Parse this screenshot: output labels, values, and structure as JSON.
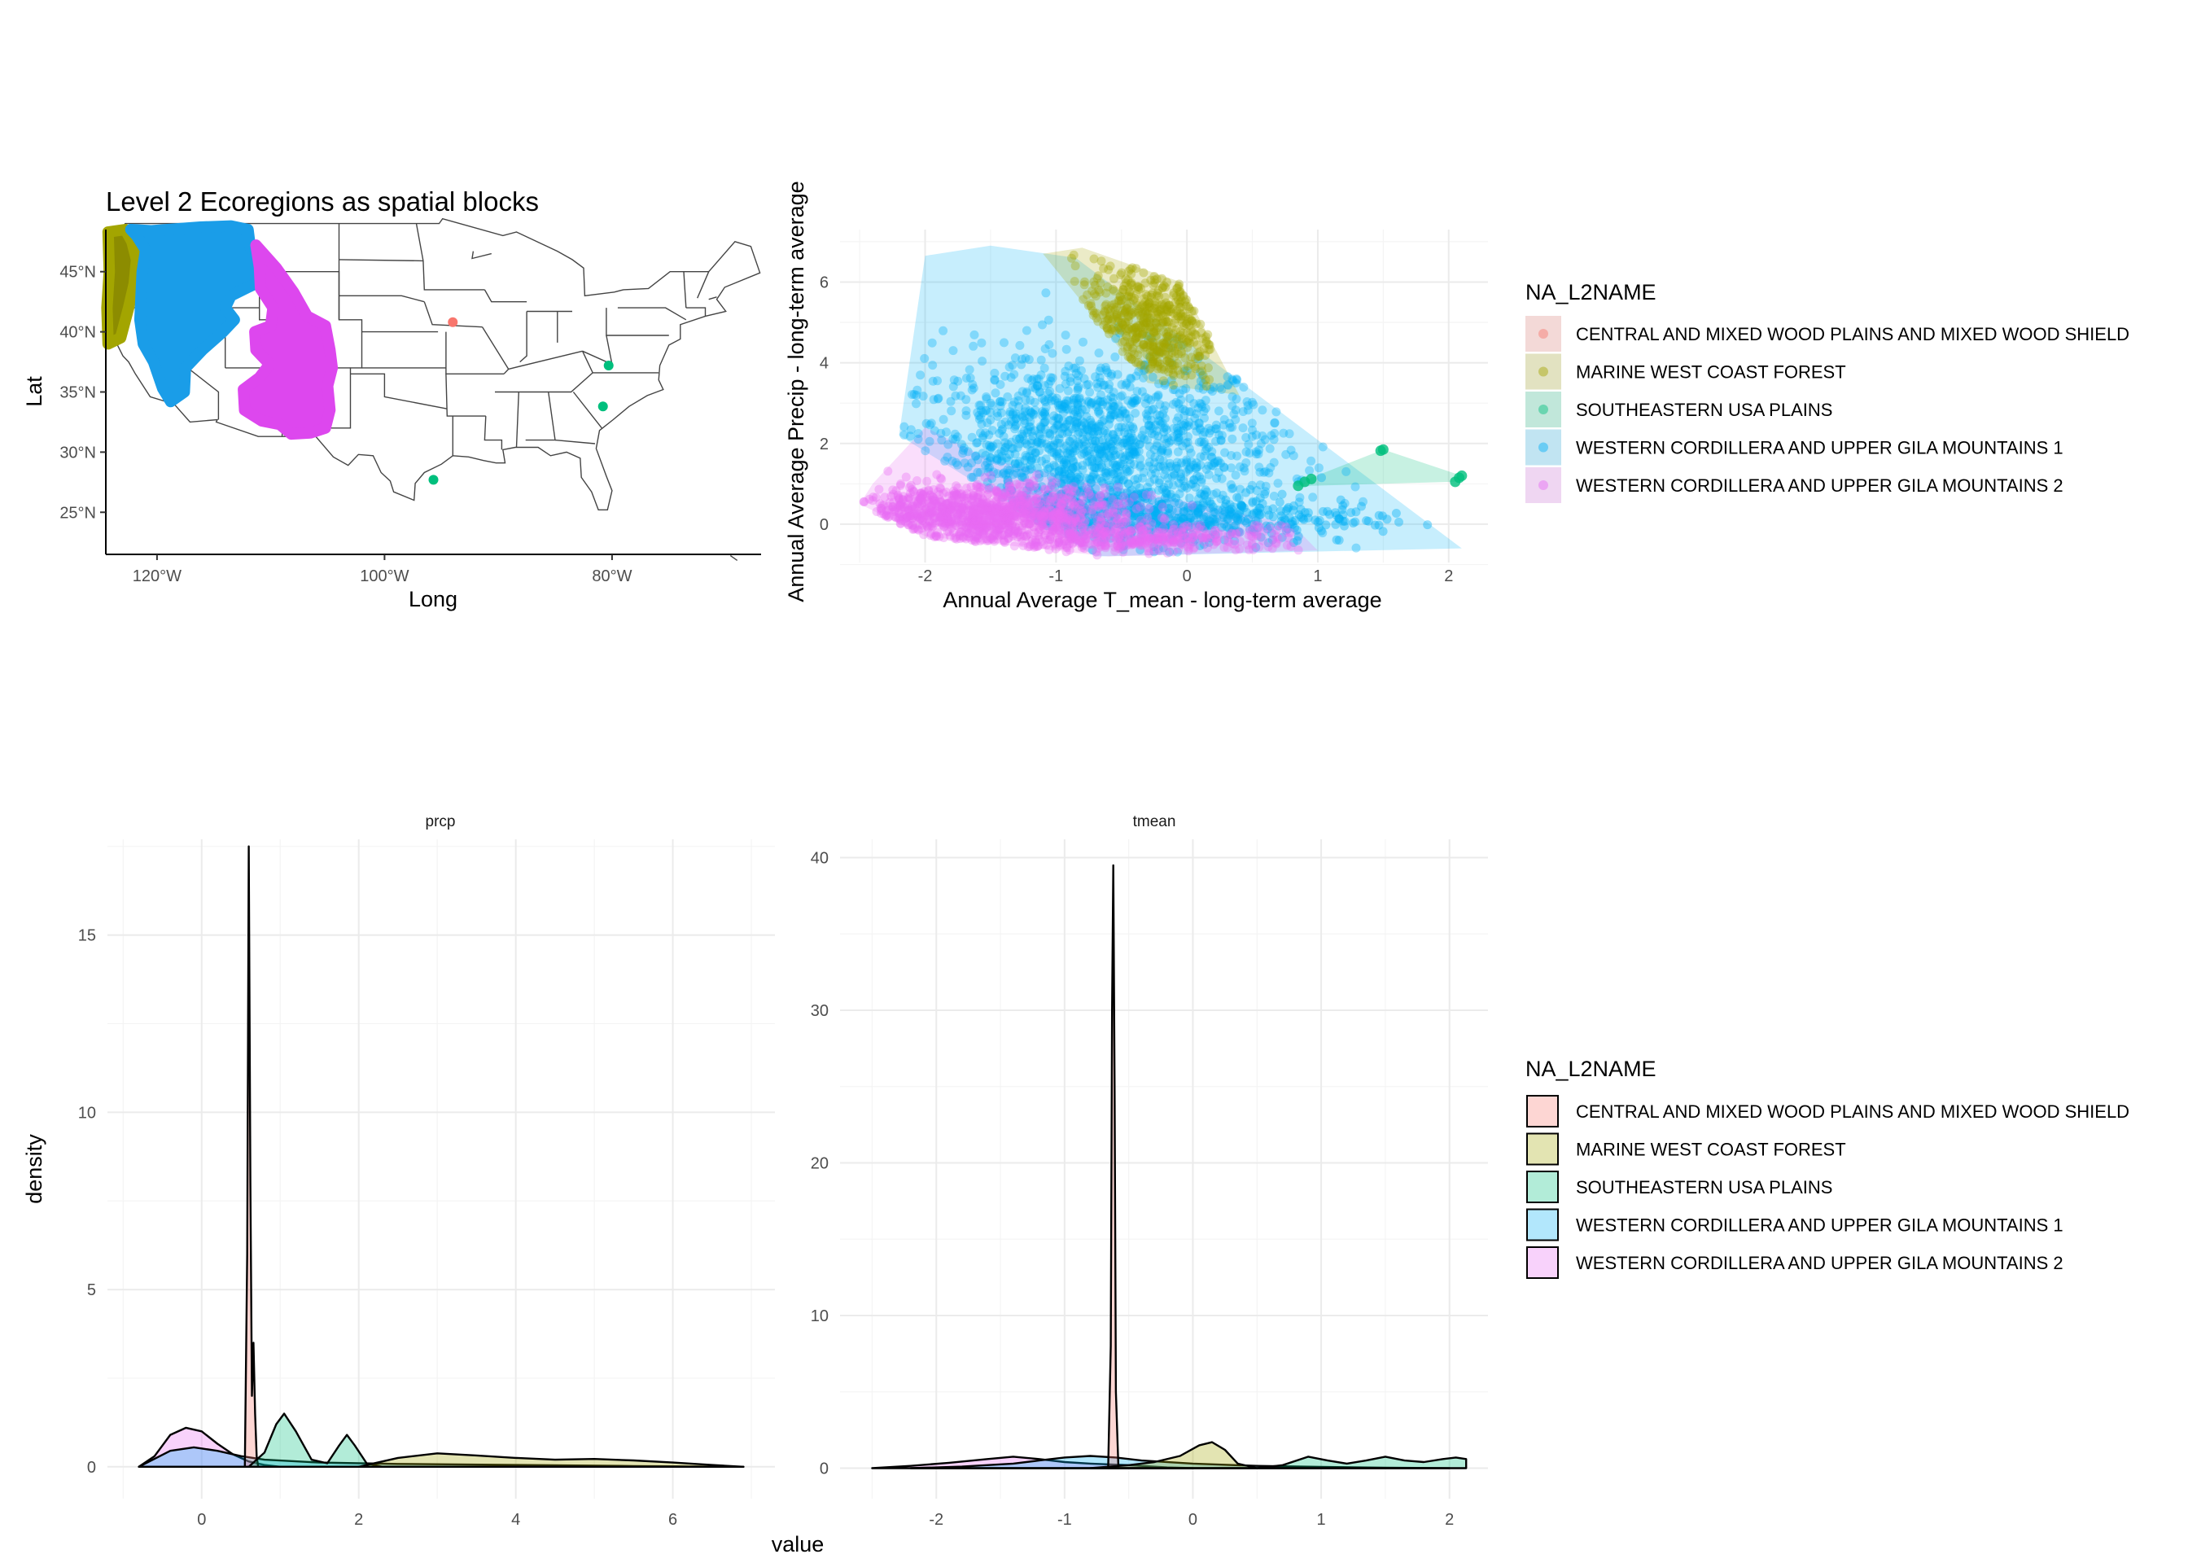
{
  "colors": {
    "central": "#F8766D",
    "marine": "#A3A500",
    "southeastern": "#00BF7D",
    "western1": "#00B0F6",
    "western2": "#E76BF3",
    "marine_dark": "#8c8c00",
    "southeastern_dark": "#1fb06b",
    "western1_dark": "#1a9de8",
    "western2_dark": "#dd47ee"
  },
  "legend_top": {
    "title": "NA_L2NAME",
    "items": [
      {
        "label": "CENTRAL AND MIXED WOOD PLAINS AND MIXED WOOD SHIELD",
        "color": "#F8766D"
      },
      {
        "label": "MARINE WEST COAST FOREST",
        "color": "#A3A500"
      },
      {
        "label": "SOUTHEASTERN USA PLAINS",
        "color": "#00BF7D"
      },
      {
        "label": "WESTERN CORDILLERA AND UPPER GILA MOUNTAINS 1",
        "color": "#00B0F6"
      },
      {
        "label": "WESTERN CORDILLERA AND UPPER GILA MOUNTAINS 2",
        "color": "#E76BF3"
      }
    ]
  },
  "legend_bottom": {
    "title": "NA_L2NAME",
    "items": [
      {
        "label": "CENTRAL AND MIXED WOOD PLAINS AND MIXED WOOD SHIELD",
        "color": "#F8766D"
      },
      {
        "label": "MARINE WEST COAST FOREST",
        "color": "#A3A500"
      },
      {
        "label": "SOUTHEASTERN USA PLAINS",
        "color": "#00BF7D"
      },
      {
        "label": "WESTERN CORDILLERA AND UPPER GILA MOUNTAINS 1",
        "color": "#00B0F6"
      },
      {
        "label": "WESTERN CORDILLERA AND UPPER GILA MOUNTAINS 2",
        "color": "#E76BF3"
      }
    ]
  },
  "chart_data": [
    {
      "type": "scatter",
      "subtype": "map",
      "title": "Level 2 Ecoregions as spatial blocks",
      "xlabel": "Long",
      "ylabel": "Lat",
      "xlim": [
        -124.5,
        -66.9
      ],
      "ylim": [
        21.5,
        48.5
      ],
      "x_ticks": [
        -120,
        -100,
        -80
      ],
      "x_tick_labels": [
        "120°W",
        "100°W",
        "80°W"
      ],
      "y_ticks": [
        25,
        30,
        35,
        40,
        45
      ],
      "y_tick_labels": [
        "25°N",
        "30°N",
        "35°N",
        "40°N",
        "45°N"
      ],
      "grid": false,
      "series": [
        {
          "key": "central",
          "points": [
            [
              -94.0,
              40.8
            ]
          ]
        },
        {
          "key": "southeastern",
          "points": [
            [
              -80.3,
              37.2
            ],
            [
              -80.8,
              33.8
            ],
            [
              -95.7,
              27.7
            ]
          ]
        },
        {
          "key": "marine",
          "region": "Pacific Northwest coast, 39-47°N, 124-122°W"
        },
        {
          "key": "western1",
          "region": "Cascades, Sierra Nevada, Northern Rockies, 34-47°N"
        },
        {
          "key": "western2",
          "region": "Southern Rockies, Colorado Plateau, Arizona-New Mexico mountains, 29-46°N"
        }
      ]
    },
    {
      "type": "scatter",
      "xlabel": "Annual Average T_mean - long-term average",
      "ylabel": "Annual Average Precip - long-term average",
      "xlim": [
        -2.65,
        2.3
      ],
      "ylim": [
        -0.95,
        7.3
      ],
      "x_ticks": [
        -2,
        -1,
        0,
        1,
        2
      ],
      "y_ticks": [
        0,
        2,
        4,
        6
      ],
      "grid": true,
      "hulls": {
        "western1": [
          [
            -2.0,
            6.65
          ],
          [
            -1.5,
            6.9
          ],
          [
            -0.85,
            6.6
          ],
          [
            2.1,
            -0.6
          ],
          [
            -0.7,
            -0.8
          ],
          [
            -2.2,
            2.2
          ]
        ],
        "marine": [
          [
            -1.1,
            6.7
          ],
          [
            -0.8,
            6.85
          ],
          [
            -0.05,
            6.0
          ],
          [
            0.4,
            3.2
          ],
          [
            -0.3,
            3.5
          ]
        ],
        "southeastern": [
          [
            0.85,
            0.9
          ],
          [
            0.95,
            1.15
          ],
          [
            1.5,
            1.85
          ],
          [
            2.1,
            1.2
          ],
          [
            2.05,
            1.05
          ],
          [
            0.95,
            0.95
          ]
        ],
        "western2": [
          [
            -2.5,
            0.5
          ],
          [
            -2.4,
            1.0
          ],
          [
            -2.0,
            2.4
          ],
          [
            -1.5,
            1.6
          ],
          [
            0.8,
            0.0
          ],
          [
            1.0,
            -0.65
          ],
          [
            -0.6,
            -0.8
          ],
          [
            -2.0,
            -0.3
          ]
        ]
      },
      "clusters": {
        "western1": {
          "x_range": [
            -2.2,
            2.1
          ],
          "y_range": [
            -0.8,
            6.9
          ],
          "center": [
            -0.8,
            1.8
          ]
        },
        "marine": {
          "x_range": [
            -1.1,
            0.4
          ],
          "y_range": [
            3.0,
            6.85
          ],
          "center": [
            -0.3,
            4.8
          ]
        },
        "western2": {
          "x_range": [
            -2.5,
            1.0
          ],
          "y_range": [
            -0.8,
            2.4
          ],
          "center": [
            -1.6,
            0.4
          ]
        },
        "southeastern": {
          "points": [
            [
              0.85,
              0.95
            ],
            [
              0.9,
              1.05
            ],
            [
              0.95,
              1.12
            ],
            [
              1.48,
              1.82
            ],
            [
              1.5,
              1.85
            ],
            [
              2.05,
              1.05
            ],
            [
              2.08,
              1.15
            ],
            [
              2.1,
              1.2
            ]
          ]
        }
      }
    },
    {
      "type": "area",
      "subtype": "density",
      "facet": "prcp",
      "xlabel": "value",
      "ylabel": "density",
      "xlim": [
        -1.2,
        7.3
      ],
      "ylim": [
        -0.9,
        17.7
      ],
      "x_ticks": [
        0,
        2,
        4,
        6
      ],
      "y_ticks": [
        0,
        5,
        10,
        15
      ],
      "grid": true,
      "series": [
        {
          "key": "western2",
          "x": [
            -0.8,
            -0.6,
            -0.4,
            -0.2,
            0.0,
            0.2,
            0.4,
            0.6,
            0.8,
            1.0,
            1.2
          ],
          "y": [
            0.0,
            0.3,
            0.9,
            1.1,
            1.0,
            0.65,
            0.35,
            0.15,
            0.05,
            0.0,
            0.0
          ]
        },
        {
          "key": "western1",
          "x": [
            -0.8,
            -0.4,
            -0.1,
            0.2,
            0.5,
            0.8,
            1.5,
            2.5,
            4.0,
            5.5,
            6.9
          ],
          "y": [
            0.0,
            0.45,
            0.55,
            0.45,
            0.3,
            0.2,
            0.12,
            0.08,
            0.05,
            0.02,
            0.0
          ]
        },
        {
          "key": "central",
          "x": [
            0.55,
            0.58,
            0.6,
            0.62,
            0.64,
            0.66,
            0.68,
            0.7,
            0.72,
            0.75
          ],
          "y": [
            0.0,
            6.0,
            17.5,
            8.0,
            2.0,
            3.5,
            1.5,
            0.3,
            0.0,
            0.0
          ]
        },
        {
          "key": "southeastern",
          "x": [
            0.6,
            0.8,
            0.95,
            1.05,
            1.2,
            1.4,
            1.6,
            1.75,
            1.85,
            1.95,
            2.1,
            2.3
          ],
          "y": [
            0.0,
            0.4,
            1.2,
            1.5,
            1.0,
            0.2,
            0.1,
            0.6,
            0.9,
            0.6,
            0.1,
            0.0
          ]
        },
        {
          "key": "marine",
          "x": [
            2.0,
            2.5,
            3.0,
            3.5,
            4.0,
            4.5,
            5.0,
            5.5,
            6.0,
            6.5,
            6.9
          ],
          "y": [
            0.0,
            0.25,
            0.38,
            0.32,
            0.25,
            0.2,
            0.22,
            0.18,
            0.12,
            0.05,
            0.0
          ]
        }
      ]
    },
    {
      "type": "area",
      "subtype": "density",
      "facet": "tmean",
      "xlabel": "value",
      "ylabel": "density",
      "xlim": [
        -2.75,
        2.3
      ],
      "ylim": [
        -2.0,
        41.2
      ],
      "x_ticks": [
        -2,
        -1,
        0,
        1,
        2
      ],
      "y_ticks": [
        0,
        10,
        20,
        30,
        40
      ],
      "grid": true,
      "series": [
        {
          "key": "western2",
          "x": [
            -2.5,
            -2.2,
            -1.9,
            -1.6,
            -1.4,
            -1.2,
            -1.0,
            -0.8,
            -0.5,
            -0.2,
            0.0
          ],
          "y": [
            0.0,
            0.15,
            0.35,
            0.6,
            0.75,
            0.6,
            0.4,
            0.3,
            0.2,
            0.05,
            0.0
          ]
        },
        {
          "key": "western1",
          "x": [
            -2.2,
            -1.8,
            -1.4,
            -1.2,
            -1.0,
            -0.8,
            -0.6,
            -0.4,
            0.0,
            0.5,
            1.0,
            1.5,
            2.0
          ],
          "y": [
            0.0,
            0.1,
            0.3,
            0.5,
            0.7,
            0.8,
            0.7,
            0.5,
            0.3,
            0.15,
            0.08,
            0.03,
            0.0
          ]
        },
        {
          "key": "central",
          "x": [
            -0.66,
            -0.64,
            -0.63,
            -0.62,
            -0.61,
            -0.6,
            -0.58
          ],
          "y": [
            0.0,
            8.0,
            30.0,
            39.5,
            25.0,
            5.0,
            0.0
          ]
        },
        {
          "key": "marine",
          "x": [
            -0.8,
            -0.5,
            -0.3,
            -0.1,
            0.05,
            0.15,
            0.25,
            0.35,
            0.5
          ],
          "y": [
            0.0,
            0.2,
            0.4,
            0.8,
            1.5,
            1.7,
            1.2,
            0.3,
            0.0
          ]
        },
        {
          "key": "southeastern",
          "x": [
            0.5,
            0.7,
            0.9,
            1.05,
            1.2,
            1.35,
            1.5,
            1.65,
            1.8,
            1.95,
            2.05,
            2.13
          ],
          "y": [
            0.0,
            0.2,
            0.75,
            0.5,
            0.3,
            0.5,
            0.75,
            0.5,
            0.4,
            0.6,
            0.7,
            0.6
          ]
        }
      ]
    }
  ]
}
